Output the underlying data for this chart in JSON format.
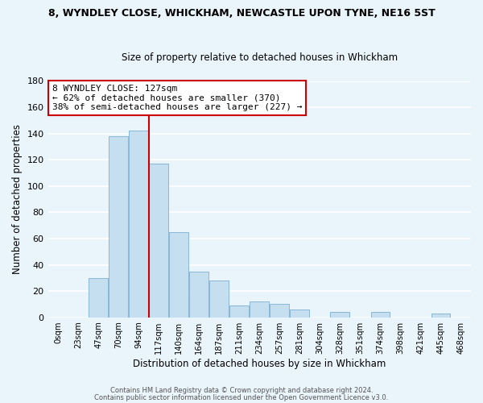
{
  "title_line1": "8, WYNDLEY CLOSE, WHICKHAM, NEWCASTLE UPON TYNE, NE16 5ST",
  "title_line2": "Size of property relative to detached houses in Whickham",
  "xlabel": "Distribution of detached houses by size in Whickham",
  "ylabel": "Number of detached properties",
  "bar_labels": [
    "0sqm",
    "23sqm",
    "47sqm",
    "70sqm",
    "94sqm",
    "117sqm",
    "140sqm",
    "164sqm",
    "187sqm",
    "211sqm",
    "234sqm",
    "257sqm",
    "281sqm",
    "304sqm",
    "328sqm",
    "351sqm",
    "374sqm",
    "398sqm",
    "421sqm",
    "445sqm",
    "468sqm"
  ],
  "bar_values": [
    0,
    0,
    30,
    138,
    142,
    117,
    65,
    35,
    28,
    9,
    12,
    10,
    6,
    0,
    4,
    0,
    4,
    0,
    0,
    3,
    0
  ],
  "bar_color": "#c5dff0",
  "bar_edge_color": "#7bafd4",
  "vline_x": 4.5,
  "vline_color": "#cc0000",
  "annotation_title": "8 WYNDLEY CLOSE: 127sqm",
  "annotation_line2": "← 62% of detached houses are smaller (370)",
  "annotation_line3": "38% of semi-detached houses are larger (227) →",
  "annotation_box_color": "#ffffff",
  "annotation_box_edge": "#cc0000",
  "ylim": [
    0,
    180
  ],
  "yticks": [
    0,
    20,
    40,
    60,
    80,
    100,
    120,
    140,
    160,
    180
  ],
  "footer_line1": "Contains HM Land Registry data © Crown copyright and database right 2024.",
  "footer_line2": "Contains public sector information licensed under the Open Government Licence v3.0.",
  "bg_color": "#eaf4fb",
  "grid_color": "#ffffff"
}
